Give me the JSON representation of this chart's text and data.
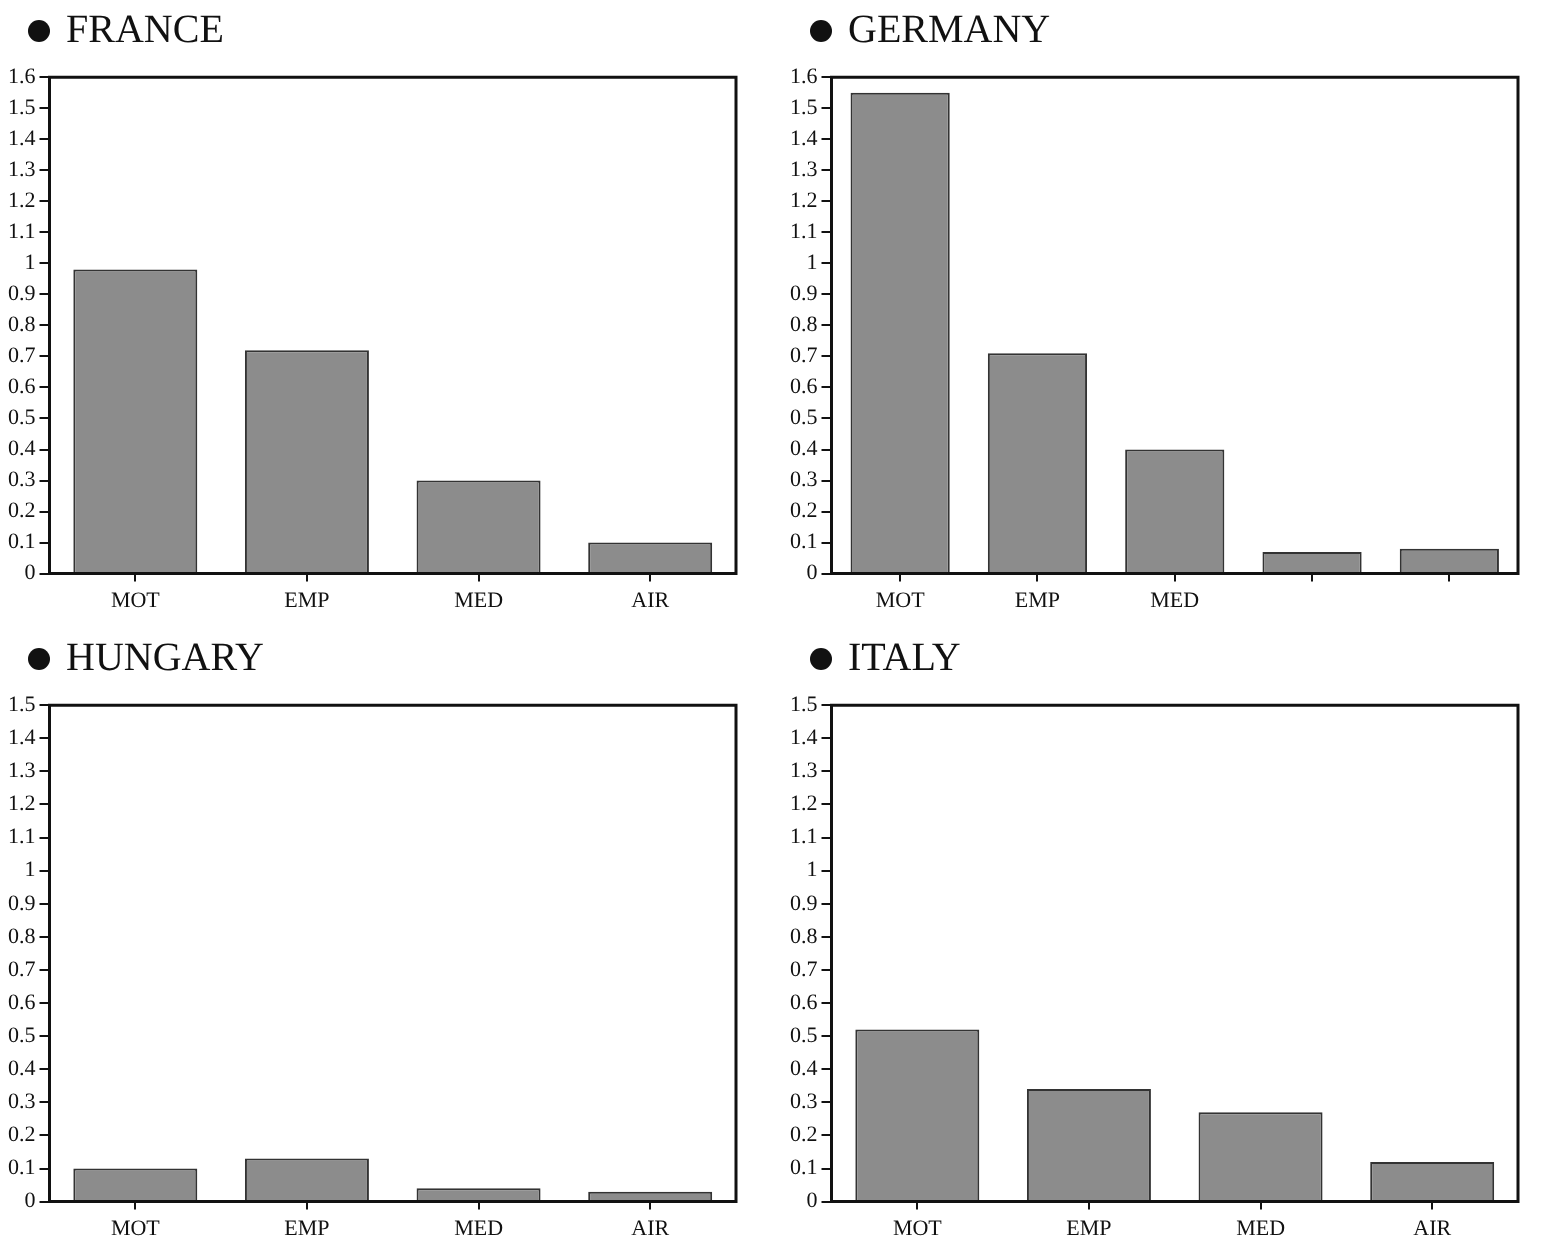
{
  "chart_data": [
    {
      "type": "bar",
      "title": "FRANCE",
      "categories": [
        "MOT",
        "EMP",
        "MED",
        "AIR"
      ],
      "values": [
        0.98,
        0.72,
        0.3,
        0.1
      ],
      "color": "#8c8c8c",
      "ylim": [
        0,
        1.6
      ],
      "yticks": [
        0,
        0.1,
        0.2,
        0.3,
        0.4,
        0.5,
        0.6,
        0.7,
        0.8,
        0.9,
        1,
        1.1,
        1.2,
        1.3,
        1.4,
        1.5,
        1.6
      ],
      "grid": false,
      "legend": false
    },
    {
      "type": "bar",
      "title": "GERMANY",
      "categories": [
        "MOT",
        "EMP",
        "MED",
        null,
        null
      ],
      "values": [
        1.55,
        0.71,
        0.4,
        0.07,
        0.08
      ],
      "color": "#8c8c8c",
      "ylim": [
        0,
        1.6
      ],
      "yticks": [
        0,
        0.1,
        0.2,
        0.3,
        0.4,
        0.5,
        0.6,
        0.7,
        0.8,
        0.9,
        1,
        1.1,
        1.2,
        1.3,
        1.4,
        1.5,
        1.6
      ],
      "grid": false,
      "legend": false
    },
    {
      "type": "bar",
      "title": "HUNGARY",
      "categories": [
        "MOT",
        "EMP",
        "MED",
        "AIR"
      ],
      "values": [
        0.1,
        0.13,
        0.04,
        0.03
      ],
      "color": "#8c8c8c",
      "ylim": [
        0,
        1.5
      ],
      "yticks": [
        0,
        0.1,
        0.2,
        0.3,
        0.4,
        0.5,
        0.6,
        0.7,
        0.8,
        0.9,
        1,
        1.1,
        1.2,
        1.3,
        1.4,
        1.5
      ],
      "grid": false,
      "legend": false
    },
    {
      "type": "bar",
      "title": "ITALY",
      "categories": [
        "MOT",
        "EMP",
        "MED",
        "AIR"
      ],
      "values": [
        0.52,
        0.34,
        0.27,
        0.12
      ],
      "color": "#8c8c8c",
      "ylim": [
        0,
        1.5
      ],
      "yticks": [
        0,
        0.1,
        0.2,
        0.3,
        0.4,
        0.5,
        0.6,
        0.7,
        0.8,
        0.9,
        1,
        1.1,
        1.2,
        1.3,
        1.4,
        1.5
      ],
      "grid": false,
      "legend": false
    }
  ]
}
